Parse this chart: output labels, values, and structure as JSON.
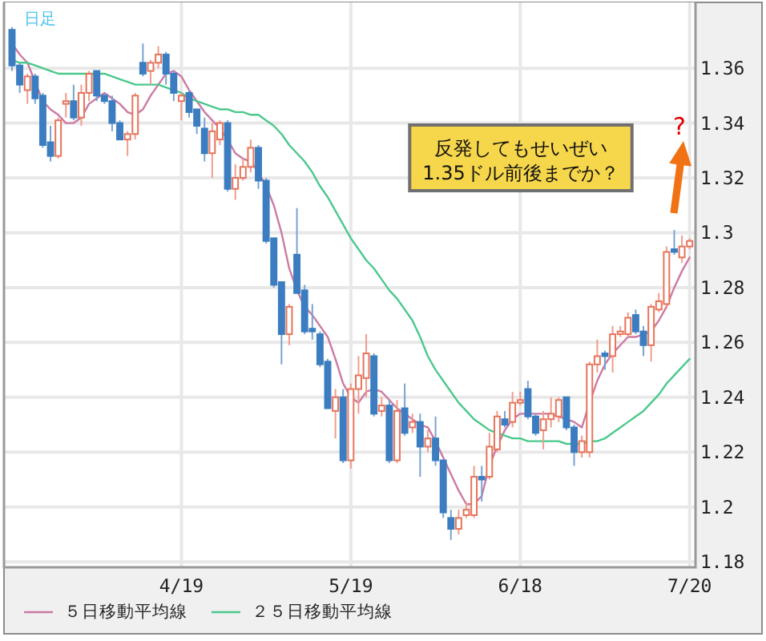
{
  "chart_data": {
    "type": "candlestick",
    "title": "日足",
    "categories": [
      null,
      null,
      null,
      null,
      null,
      null,
      null,
      null,
      null,
      null,
      null,
      null,
      null,
      null,
      null,
      null,
      null,
      null,
      null,
      null,
      null,
      null,
      "4/19",
      null,
      null,
      null,
      null,
      null,
      null,
      null,
      null,
      null,
      null,
      null,
      null,
      null,
      null,
      null,
      null,
      null,
      null,
      null,
      null,
      null,
      "5/19",
      null,
      null,
      null,
      null,
      null,
      null,
      null,
      null,
      null,
      null,
      null,
      null,
      null,
      null,
      null,
      null,
      null,
      null,
      null,
      null,
      null,
      "6/18",
      null,
      null,
      null,
      null,
      null,
      null,
      null,
      null,
      null,
      null,
      null,
      null,
      null,
      null,
      null,
      null,
      null,
      null,
      null,
      null,
      null,
      "7/20"
    ],
    "ohlc": [
      [
        1.374,
        1.375,
        1.359,
        1.361
      ],
      [
        1.361,
        1.362,
        1.351,
        1.354
      ],
      [
        1.352,
        1.358,
        1.347,
        1.357
      ],
      [
        1.357,
        1.358,
        1.347,
        1.349
      ],
      [
        1.35,
        1.351,
        1.331,
        1.332
      ],
      [
        1.333,
        1.339,
        1.326,
        1.328
      ],
      [
        1.328,
        1.342,
        1.327,
        1.341
      ],
      [
        1.347,
        1.351,
        1.342,
        1.348
      ],
      [
        1.348,
        1.354,
        1.341,
        1.342
      ],
      [
        1.342,
        1.354,
        1.339,
        1.351
      ],
      [
        1.351,
        1.359,
        1.348,
        1.358
      ],
      [
        1.359,
        1.359,
        1.348,
        1.35
      ],
      [
        1.35,
        1.351,
        1.347,
        1.348
      ],
      [
        1.348,
        1.35,
        1.337,
        1.34
      ],
      [
        1.34,
        1.341,
        1.334,
        1.334
      ],
      [
        1.334,
        1.337,
        1.328,
        1.336
      ],
      [
        1.336,
        1.351,
        1.334,
        1.35
      ],
      [
        1.362,
        1.369,
        1.357,
        1.358
      ],
      [
        1.359,
        1.363,
        1.354,
        1.362
      ],
      [
        1.362,
        1.368,
        1.36,
        1.365
      ],
      [
        1.365,
        1.366,
        1.354,
        1.358
      ],
      [
        1.358,
        1.359,
        1.348,
        1.351
      ],
      [
        1.348,
        1.351,
        1.341,
        1.35
      ],
      [
        1.351,
        1.352,
        1.342,
        1.344
      ],
      [
        1.345,
        1.345,
        1.336,
        1.339
      ],
      [
        1.338,
        1.342,
        1.326,
        1.329
      ],
      [
        1.329,
        1.34,
        1.32,
        1.337
      ],
      [
        1.334,
        1.341,
        1.332,
        1.34
      ],
      [
        1.34,
        1.341,
        1.315,
        1.316
      ],
      [
        1.316,
        1.325,
        1.312,
        1.32
      ],
      [
        1.32,
        1.327,
        1.319,
        1.324
      ],
      [
        1.324,
        1.334,
        1.322,
        1.331
      ],
      [
        1.331,
        1.332,
        1.316,
        1.319
      ],
      [
        1.319,
        1.32,
        1.296,
        1.297
      ],
      [
        1.298,
        1.298,
        1.28,
        1.281
      ],
      [
        1.282,
        1.282,
        1.252,
        1.263
      ],
      [
        1.263,
        1.274,
        1.259,
        1.273
      ],
      [
        1.292,
        1.309,
        1.278,
        1.278
      ],
      [
        1.279,
        1.281,
        1.263,
        1.264
      ],
      [
        1.265,
        1.274,
        1.261,
        1.264
      ],
      [
        1.263,
        1.264,
        1.251,
        1.252
      ],
      [
        1.253,
        1.254,
        1.236,
        1.236
      ],
      [
        1.235,
        1.243,
        1.225,
        1.24
      ],
      [
        1.24,
        1.243,
        1.216,
        1.217
      ],
      [
        1.217,
        1.245,
        1.214,
        1.243
      ],
      [
        1.243,
        1.255,
        1.234,
        1.248
      ],
      [
        1.247,
        1.263,
        1.24,
        1.256
      ],
      [
        1.255,
        1.256,
        1.233,
        1.234
      ],
      [
        1.235,
        1.24,
        1.233,
        1.237
      ],
      [
        1.237,
        1.239,
        1.216,
        1.217
      ],
      [
        1.217,
        1.239,
        1.216,
        1.235
      ],
      [
        1.236,
        1.245,
        1.226,
        1.227
      ],
      [
        1.229,
        1.234,
        1.227,
        1.231
      ],
      [
        1.231,
        1.234,
        1.211,
        1.222
      ],
      [
        1.222,
        1.228,
        1.22,
        1.225
      ],
      [
        1.225,
        1.233,
        1.215,
        1.217
      ],
      [
        1.217,
        1.217,
        1.196,
        1.198
      ],
      [
        1.196,
        1.199,
        1.188,
        1.192
      ],
      [
        1.192,
        1.199,
        1.19,
        1.196
      ],
      [
        1.197,
        1.202,
        1.196,
        1.199
      ],
      [
        1.197,
        1.215,
        1.196,
        1.211
      ],
      [
        1.211,
        1.215,
        1.202,
        1.21
      ],
      [
        1.211,
        1.227,
        1.21,
        1.222
      ],
      [
        1.221,
        1.235,
        1.22,
        1.233
      ],
      [
        1.232,
        1.235,
        1.229,
        1.23
      ],
      [
        1.231,
        1.242,
        1.229,
        1.238
      ],
      [
        1.238,
        1.242,
        1.237,
        1.239
      ],
      [
        1.243,
        1.246,
        1.232,
        1.233
      ],
      [
        1.233,
        1.234,
        1.226,
        1.227
      ],
      [
        1.228,
        1.235,
        1.221,
        1.232
      ],
      [
        1.232,
        1.24,
        1.229,
        1.234
      ],
      [
        1.233,
        1.24,
        1.231,
        1.239
      ],
      [
        1.24,
        1.24,
        1.228,
        1.229
      ],
      [
        1.229,
        1.23,
        1.215,
        1.22
      ],
      [
        1.22,
        1.226,
        1.218,
        1.224
      ],
      [
        1.22,
        1.253,
        1.218,
        1.252
      ],
      [
        1.252,
        1.261,
        1.249,
        1.255
      ],
      [
        1.256,
        1.257,
        1.25,
        1.255
      ],
      [
        1.255,
        1.266,
        1.249,
        1.263
      ],
      [
        1.263,
        1.266,
        1.262,
        1.264
      ],
      [
        1.263,
        1.271,
        1.262,
        1.269
      ],
      [
        1.27,
        1.272,
        1.263,
        1.264
      ],
      [
        1.264,
        1.266,
        1.255,
        1.259
      ],
      [
        1.259,
        1.274,
        1.253,
        1.273
      ],
      [
        1.272,
        1.278,
        1.271,
        1.275
      ],
      [
        1.274,
        1.295,
        1.273,
        1.293
      ],
      [
        1.294,
        1.301,
        1.292,
        1.293
      ],
      [
        1.291,
        1.299,
        1.289,
        1.295
      ],
      [
        1.295,
        1.298,
        1.294,
        1.297
      ]
    ],
    "colors": [
      "#3b7dc0",
      "#3b7dc0",
      "#e8735a",
      "#3b7dc0",
      "#3b7dc0",
      "#3b7dc0",
      "#e8735a",
      "#e8735a",
      "#3b7dc0",
      "#e8735a",
      "#e8735a",
      "#3b7dc0",
      "#3b7dc0",
      "#3b7dc0",
      "#3b7dc0",
      "#e8735a",
      "#e8735a",
      "#3b7dc0",
      "#e8735a",
      "#e8735a",
      "#3b7dc0",
      "#3b7dc0",
      "#e8735a",
      "#3b7dc0",
      "#3b7dc0",
      "#3b7dc0",
      "#e8735a",
      "#e8735a",
      "#3b7dc0",
      "#e8735a",
      "#e8735a",
      "#e8735a",
      "#3b7dc0",
      "#3b7dc0",
      "#3b7dc0",
      "#3b7dc0",
      "#e8735a",
      "#3b7dc0",
      "#3b7dc0",
      "#3b7dc0",
      "#3b7dc0",
      "#3b7dc0",
      "#e8735a",
      "#3b7dc0",
      "#e8735a",
      "#e8735a",
      "#e8735a",
      "#3b7dc0",
      "#e8735a",
      "#3b7dc0",
      "#e8735a",
      "#3b7dc0",
      "#e8735a",
      "#3b7dc0",
      "#e8735a",
      "#3b7dc0",
      "#3b7dc0",
      "#3b7dc0",
      "#e8735a",
      "#e8735a",
      "#e8735a",
      "#3b7dc0",
      "#e8735a",
      "#e8735a",
      "#3b7dc0",
      "#e8735a",
      "#e8735a",
      "#3b7dc0",
      "#3b7dc0",
      "#e8735a",
      "#e8735a",
      "#e8735a",
      "#3b7dc0",
      "#3b7dc0",
      "#e8735a",
      "#e8735a",
      "#e8735a",
      "#3b7dc0",
      "#e8735a",
      "#e8735a",
      "#e8735a",
      "#3b7dc0",
      "#3b7dc0",
      "#e8735a",
      "#e8735a",
      "#e8735a",
      "#3b7dc0",
      "#e8735a",
      "#e8735a"
    ],
    "series": [
      {
        "type": "line",
        "name": "５日移動平均線",
        "color": "#cc7aa3",
        "values": [
          1.369,
          1.365,
          1.362,
          1.355,
          1.348,
          1.345,
          1.343,
          1.34,
          1.34,
          1.342,
          1.347,
          1.349,
          1.351,
          1.349,
          1.347,
          1.344,
          1.343,
          1.345,
          1.35,
          1.354,
          1.358,
          1.359,
          1.357,
          1.352,
          1.348,
          1.344,
          1.341,
          1.338,
          1.334,
          1.329,
          1.327,
          1.326,
          1.322,
          1.317,
          1.31,
          1.3,
          1.287,
          1.279,
          1.273,
          1.27,
          1.266,
          1.262,
          1.254,
          1.245,
          1.24,
          1.238,
          1.242,
          1.243,
          1.242,
          1.239,
          1.236,
          1.234,
          1.232,
          1.23,
          1.229,
          1.224,
          1.218,
          1.212,
          1.206,
          1.201,
          1.201,
          1.204,
          1.215,
          1.222,
          1.228,
          1.232,
          1.234,
          1.234,
          1.234,
          1.234,
          1.234,
          1.233,
          1.232,
          1.231,
          1.229,
          1.238,
          1.246,
          1.252,
          1.256,
          1.259,
          1.262,
          1.262,
          1.263,
          1.264,
          1.268,
          1.273,
          1.28,
          1.286,
          1.291
        ]
      },
      {
        "type": "line",
        "name": "２５日移動平均線",
        "color": "#4cc88c",
        "values": [
          1.363,
          1.362,
          1.362,
          1.361,
          1.36,
          1.359,
          1.358,
          1.358,
          1.358,
          1.358,
          1.358,
          1.358,
          1.358,
          1.357,
          1.356,
          1.355,
          1.354,
          1.354,
          1.354,
          1.354,
          1.353,
          1.352,
          1.351,
          1.349,
          1.348,
          1.347,
          1.346,
          1.345,
          1.345,
          1.344,
          1.344,
          1.343,
          1.343,
          1.341,
          1.339,
          1.336,
          1.332,
          1.329,
          1.326,
          1.322,
          1.317,
          1.313,
          1.308,
          1.303,
          1.298,
          1.294,
          1.29,
          1.287,
          1.283,
          1.279,
          1.276,
          1.272,
          1.268,
          1.262,
          1.255,
          1.25,
          1.246,
          1.242,
          1.238,
          1.235,
          1.232,
          1.23,
          1.228,
          1.227,
          1.226,
          1.225,
          1.225,
          1.224,
          1.224,
          1.224,
          1.224,
          1.224,
          1.223,
          1.223,
          1.223,
          1.224,
          1.224,
          1.225,
          1.227,
          1.229,
          1.231,
          1.233,
          1.235,
          1.238,
          1.241,
          1.245,
          1.248,
          1.251,
          1.254
        ]
      }
    ],
    "ylim": [
      1.178,
      1.384
    ],
    "yticks": [
      1.18,
      1.2,
      1.22,
      1.24,
      1.26,
      1.28,
      1.3,
      1.32,
      1.34,
      1.36
    ],
    "grid": true,
    "legend": "bottom",
    "annotations": [
      "反発してもせいぜい\n1.35ドル前後までか？",
      "?"
    ]
  }
}
